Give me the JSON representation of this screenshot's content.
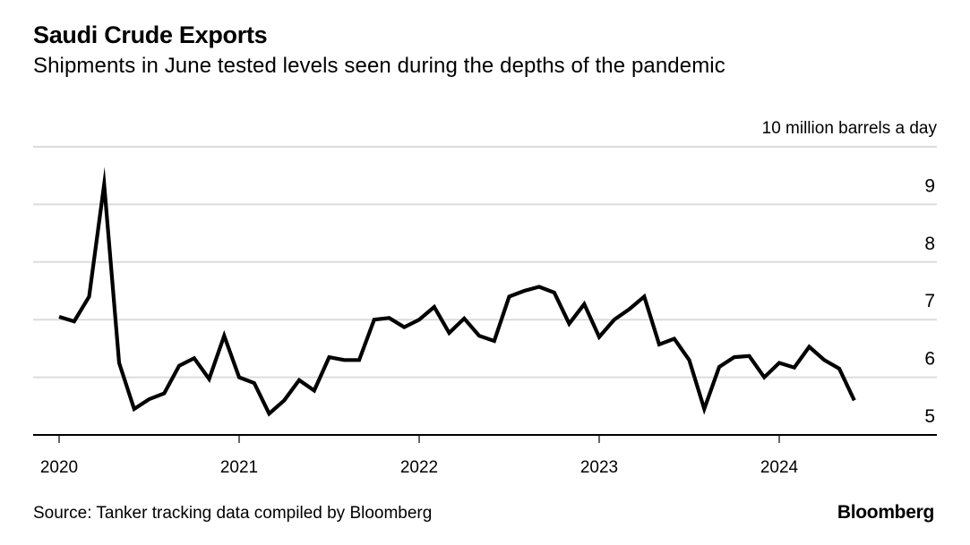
{
  "header": {
    "title": "Saudi Crude Exports",
    "subtitle": "Shipments in June tested levels seen during the depths of the pandemic"
  },
  "footer": {
    "source": "Source: Tanker tracking data compiled by Bloomberg",
    "brand": "Bloomberg"
  },
  "chart_data": {
    "type": "line",
    "title": "Saudi Crude Exports",
    "subtitle": "Shipments in June tested levels seen during the depths of the pandemic",
    "xlabel": "",
    "ylabel": "million barrels a day",
    "unit_label": "10 million barrels a day",
    "ylim": [
      5,
      10
    ],
    "yticks": [
      5,
      6,
      7,
      8,
      9,
      10
    ],
    "ytick_labels": [
      "5",
      "6",
      "7",
      "8",
      "9",
      "10 million barrels a day"
    ],
    "xticks": [
      "2020",
      "2021",
      "2022",
      "2023",
      "2024"
    ],
    "grid": true,
    "legend": "none",
    "colors": {
      "line": "#000000",
      "grid": "#dcdcdc",
      "axis": "#000000"
    },
    "series": [
      {
        "name": "Saudi crude exports",
        "x": [
          "2020-01",
          "2020-02",
          "2020-03",
          "2020-04",
          "2020-05",
          "2020-06",
          "2020-07",
          "2020-08",
          "2020-09",
          "2020-10",
          "2020-11",
          "2020-12",
          "2021-01",
          "2021-02",
          "2021-03",
          "2021-04",
          "2021-05",
          "2021-06",
          "2021-07",
          "2021-08",
          "2021-09",
          "2021-10",
          "2021-11",
          "2021-12",
          "2022-01",
          "2022-02",
          "2022-03",
          "2022-04",
          "2022-05",
          "2022-06",
          "2022-07",
          "2022-08",
          "2022-09",
          "2022-10",
          "2022-11",
          "2022-12",
          "2023-01",
          "2023-02",
          "2023-03",
          "2023-04",
          "2023-05",
          "2023-06",
          "2023-07",
          "2023-08",
          "2023-09",
          "2023-10",
          "2023-11",
          "2023-12",
          "2024-01",
          "2024-02",
          "2024-03",
          "2024-04",
          "2024-05",
          "2024-06"
        ],
        "values": [
          7.05,
          6.97,
          7.4,
          9.35,
          6.25,
          5.45,
          5.62,
          5.72,
          6.2,
          6.33,
          5.97,
          6.72,
          6.0,
          5.9,
          5.37,
          5.6,
          5.95,
          5.77,
          6.35,
          6.3,
          6.3,
          7.0,
          7.03,
          6.87,
          7.0,
          7.22,
          6.77,
          7.02,
          6.72,
          6.63,
          7.4,
          7.5,
          7.57,
          7.47,
          6.93,
          7.27,
          6.7,
          7.0,
          7.18,
          7.4,
          6.57,
          6.67,
          6.3,
          5.45,
          6.18,
          6.35,
          6.37,
          6.0,
          6.25,
          6.17,
          6.53,
          6.3,
          6.15,
          5.6
        ]
      }
    ]
  }
}
